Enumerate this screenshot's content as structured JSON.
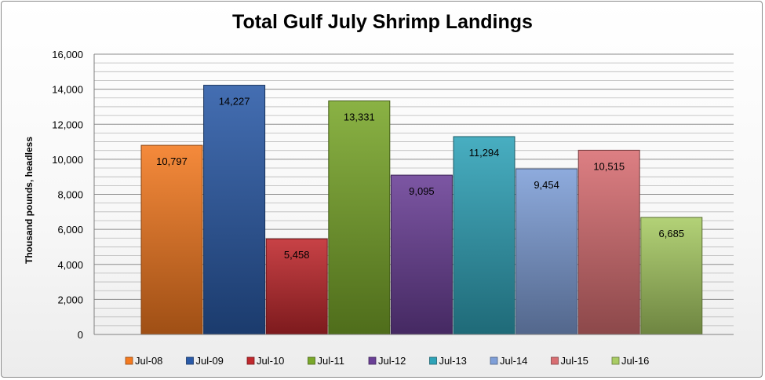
{
  "chart_data": {
    "type": "bar",
    "title": "Total Gulf July Shrimp Landings",
    "xlabel": "",
    "ylabel": "Thousand pounds, headless",
    "ylim": [
      0,
      16000
    ],
    "yticks": [
      "0",
      "2,000",
      "4,000",
      "6,000",
      "8,000",
      "10,000",
      "12,000",
      "14,000",
      "16,000"
    ],
    "grid": true,
    "legend_position": "bottom",
    "categories": [
      "Jul-08",
      "Jul-09",
      "Jul-10",
      "Jul-11",
      "Jul-12",
      "Jul-13",
      "Jul-14",
      "Jul-15",
      "Jul-16"
    ],
    "values": [
      10797,
      14227,
      5458,
      13331,
      9095,
      11294,
      9454,
      10515,
      6685
    ],
    "value_labels": [
      "10,797",
      "14,227",
      "5,458",
      "13,331",
      "9,095",
      "11,294",
      "9,454",
      "10,515",
      "6,685"
    ],
    "colors": [
      "#f47a20",
      "#2a5aa8",
      "#c0282d",
      "#7aa82a",
      "#6a3f96",
      "#2fa3b8",
      "#7f9fd8",
      "#d86e72",
      "#a9cc64"
    ]
  }
}
